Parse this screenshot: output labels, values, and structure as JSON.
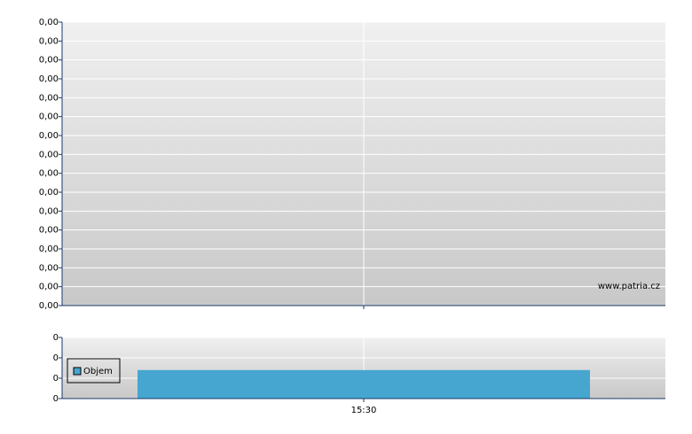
{
  "chart_data": [
    {
      "type": "line",
      "categories": [
        null
      ],
      "annotation": "www.patria.cz",
      "ylim": [
        0,
        0.0015
      ],
      "yticks": [
        {
          "value": 0,
          "label": "0,00"
        },
        {
          "value": 0.0001,
          "label": "0,00"
        },
        {
          "value": 0.0002,
          "label": "0,00"
        },
        {
          "value": 0.0003,
          "label": "0,00"
        },
        {
          "value": 0.0004,
          "label": "0,00"
        },
        {
          "value": 0.0005,
          "label": "0,00"
        },
        {
          "value": 0.0006,
          "label": "0,00"
        },
        {
          "value": 0.0007,
          "label": "0,00"
        },
        {
          "value": 0.0008,
          "label": "0,00"
        },
        {
          "value": 0.0009,
          "label": "0,00"
        },
        {
          "value": 0.001,
          "label": "0,00"
        },
        {
          "value": 0.0011,
          "label": "0,00"
        },
        {
          "value": 0.0012,
          "label": "0,00"
        },
        {
          "value": 0.0013,
          "label": "0,00"
        },
        {
          "value": 0.0014,
          "label": "0,00"
        },
        {
          "value": 0.0015,
          "label": "0,00"
        }
      ],
      "grid": true
    },
    {
      "type": "bar",
      "categories": [
        "15:30"
      ],
      "series": [
        {
          "name": "Objem",
          "color": "#46a6d0",
          "values": [
            0.14
          ]
        }
      ],
      "ylim": [
        0,
        0.3
      ],
      "yticks": [
        {
          "value": 0,
          "label": "0"
        },
        {
          "value": 0.1,
          "label": "0"
        },
        {
          "value": 0.2,
          "label": "0"
        },
        {
          "value": 0.3,
          "label": "0"
        }
      ],
      "grid": true,
      "legend": "upper left"
    }
  ]
}
